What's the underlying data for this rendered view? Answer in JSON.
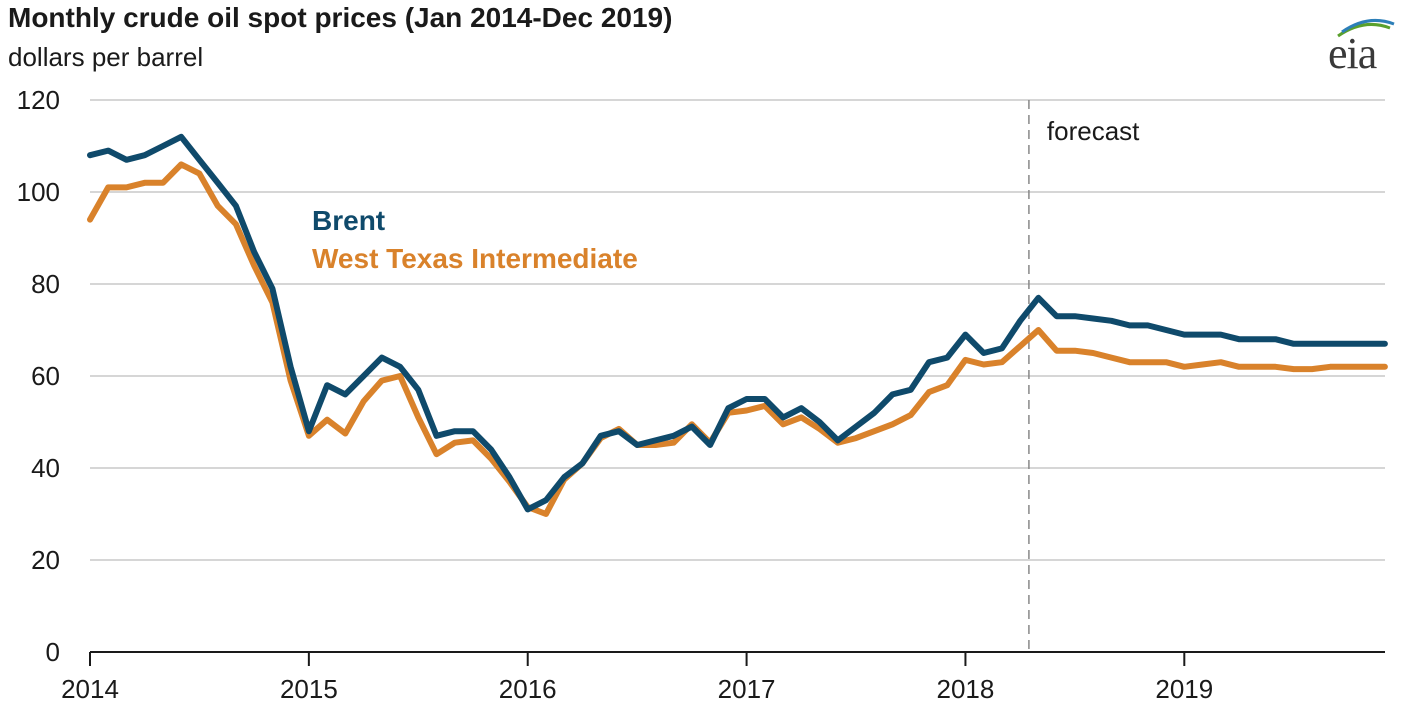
{
  "header": {
    "title": "Monthly crude oil spot prices (Jan 2014-Dec 2019)",
    "subtitle": "dollars per barrel",
    "logo_text": "eia"
  },
  "chart_data": {
    "type": "line",
    "title": "Monthly crude oil spot prices (Jan 2014-Dec 2019)",
    "ylabel": "dollars per barrel",
    "xlabel": "",
    "x_range": [
      2014.0,
      2019.917
    ],
    "ylim": [
      0,
      120
    ],
    "y_ticks": [
      0,
      20,
      40,
      60,
      80,
      100,
      120
    ],
    "x_ticks": [
      2014,
      2015,
      2016,
      2017,
      2018,
      2019
    ],
    "x_tick_labels": [
      "2014",
      "2015",
      "2016",
      "2017",
      "2018",
      "2019"
    ],
    "grid": "horizontal",
    "forecast_start": 2018.29,
    "forecast_label": "forecast",
    "x_months": [
      "2014-01",
      "2014-02",
      "2014-03",
      "2014-04",
      "2014-05",
      "2014-06",
      "2014-07",
      "2014-08",
      "2014-09",
      "2014-10",
      "2014-11",
      "2014-12",
      "2015-01",
      "2015-02",
      "2015-03",
      "2015-04",
      "2015-05",
      "2015-06",
      "2015-07",
      "2015-08",
      "2015-09",
      "2015-10",
      "2015-11",
      "2015-12",
      "2016-01",
      "2016-02",
      "2016-03",
      "2016-04",
      "2016-05",
      "2016-06",
      "2016-07",
      "2016-08",
      "2016-09",
      "2016-10",
      "2016-11",
      "2016-12",
      "2017-01",
      "2017-02",
      "2017-03",
      "2017-04",
      "2017-05",
      "2017-06",
      "2017-07",
      "2017-08",
      "2017-09",
      "2017-10",
      "2017-11",
      "2017-12",
      "2018-01",
      "2018-02",
      "2018-03",
      "2018-04",
      "2018-05",
      "2018-06",
      "2018-07",
      "2018-08",
      "2018-09",
      "2018-10",
      "2018-11",
      "2018-12",
      "2019-01",
      "2019-02",
      "2019-03",
      "2019-04",
      "2019-05",
      "2019-06",
      "2019-07",
      "2019-08",
      "2019-09",
      "2019-10",
      "2019-11",
      "2019-12"
    ],
    "series": [
      {
        "name": "Brent",
        "color": "#0f4a6b",
        "values": [
          108,
          109,
          107,
          108,
          110,
          112,
          107,
          102,
          97,
          87,
          79,
          62,
          48,
          58,
          56,
          60,
          64,
          62,
          57,
          47,
          48,
          48,
          44,
          38,
          31,
          33,
          38,
          41,
          47,
          48,
          45,
          46,
          47,
          49,
          45,
          53,
          55,
          55,
          51,
          53,
          50,
          46,
          49,
          52,
          56,
          57,
          63,
          64,
          69,
          65,
          66,
          72,
          77,
          73,
          73,
          72.5,
          72,
          71,
          71,
          70,
          69,
          69,
          69,
          68,
          68,
          68,
          67,
          67,
          67,
          67,
          67,
          67
        ]
      },
      {
        "name": "West Texas Intermediate",
        "color": "#d9822b",
        "values": [
          94,
          101,
          101,
          102,
          102,
          106,
          104,
          97,
          93,
          84,
          76,
          59,
          47,
          50.5,
          47.5,
          54.5,
          59,
          60,
          51,
          43,
          45.5,
          46,
          42,
          37,
          31.5,
          30,
          37.5,
          41,
          46.5,
          48.5,
          45,
          45,
          45.5,
          49.5,
          45.5,
          52,
          52.5,
          53.5,
          49.5,
          51,
          48.5,
          45.5,
          46.5,
          48,
          49.5,
          51.5,
          56.5,
          58,
          63.5,
          62.5,
          63,
          66.5,
          70,
          65.5,
          65.5,
          65,
          64,
          63,
          63,
          63,
          62,
          62.5,
          63,
          62,
          62,
          62,
          61.5,
          61.5,
          62,
          62,
          62,
          62
        ]
      }
    ]
  }
}
